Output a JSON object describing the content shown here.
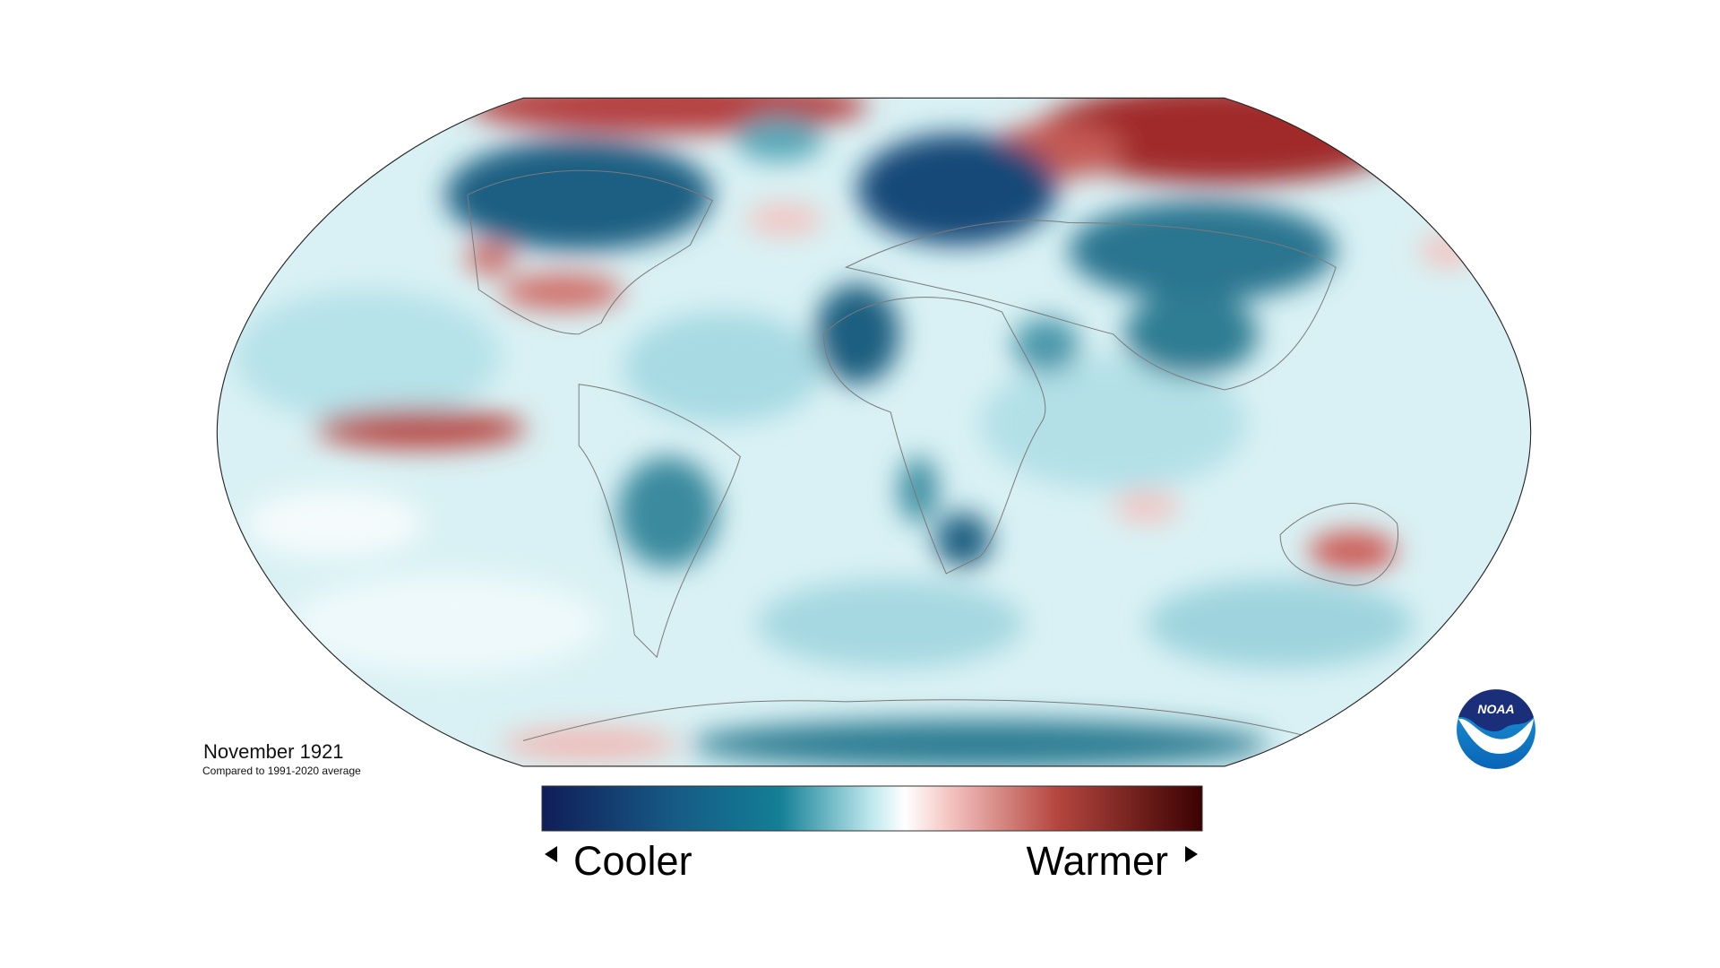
{
  "title": "November 1921",
  "subtitle": "Compared to 1991-2020 average",
  "legend": {
    "low": "Cooler",
    "high": "Warmer"
  },
  "logo": "NOAA"
}
